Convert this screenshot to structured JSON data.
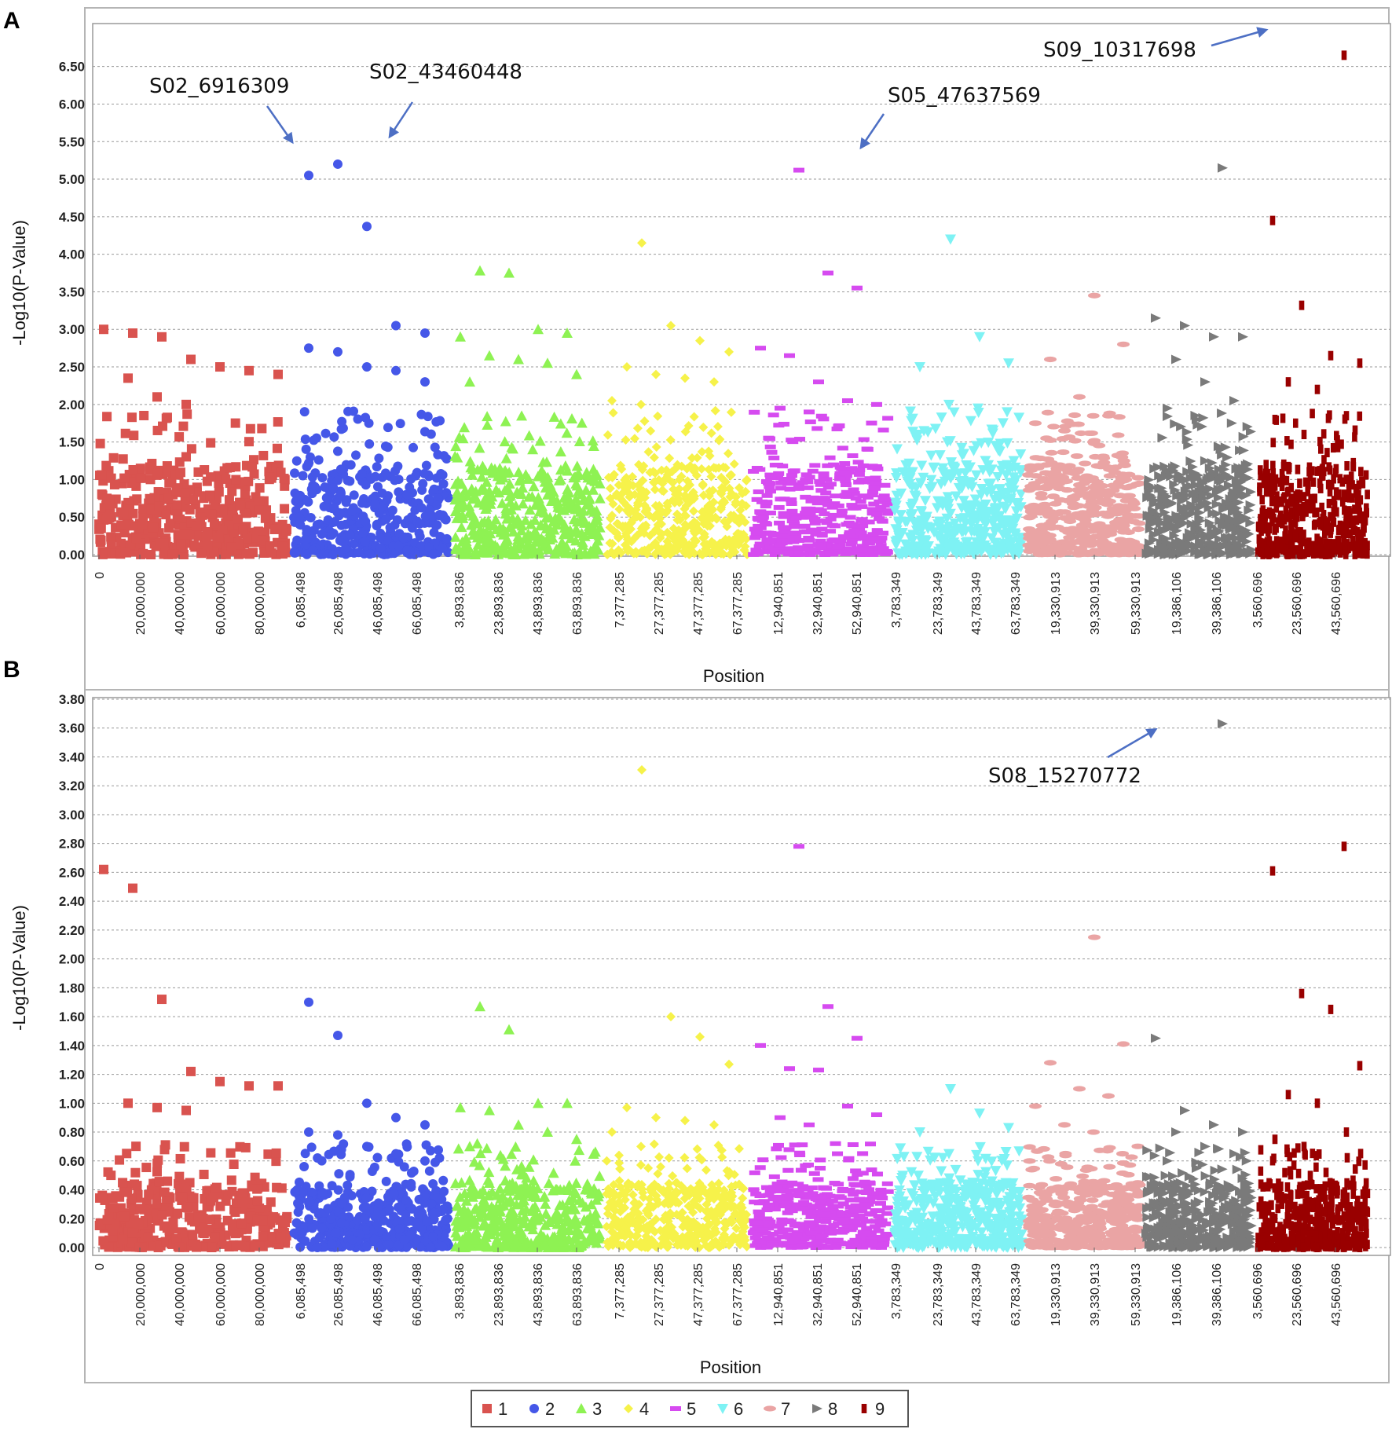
{
  "chart_data": [
    {
      "panel": "A",
      "type": "scatter",
      "subtype": "manhattan",
      "title": "",
      "xlabel": "Position",
      "ylabel": "-Log10(P-Value)",
      "ylim": [
        0,
        6.8
      ],
      "yticks": [
        "0.00",
        "0.50",
        "1.00",
        "1.50",
        "2.00",
        "2.50",
        "3.00",
        "3.50",
        "4.00",
        "4.50",
        "5.00",
        "5.50",
        "6.00",
        "6.50"
      ],
      "xticks": [
        "0",
        "20,000,000",
        "40,000,000",
        "60,000,000",
        "80,000,000",
        "6,085,498",
        "26,085,498",
        "46,085,498",
        "66,085,498",
        "3,893,836",
        "23,893,836",
        "43,893,836",
        "63,893,836",
        "7,377,285",
        "27,377,285",
        "47,377,285",
        "67,377,285",
        "12,940,851",
        "32,940,851",
        "52,940,851",
        "3,783,349",
        "23,783,349",
        "43,783,349",
        "63,783,349",
        "19,330,913",
        "39,330,913",
        "59,330,913",
        "19,386,106",
        "39,386,106",
        "3,560,696",
        "23,560,696",
        "43,560,696"
      ],
      "annotations": [
        {
          "label": "S02_6916309",
          "chromosome": 2,
          "value": 5.05
        },
        {
          "label": "S02_43460448",
          "chromosome": 2,
          "value": 5.2
        },
        {
          "label": "S05_47637569",
          "chromosome": 5,
          "value": 5.12
        },
        {
          "label": "S09_10317698",
          "chromosome": 9,
          "value": 6.65
        }
      ],
      "series": [
        {
          "name": "1",
          "top_values": [
            3.0,
            2.95,
            2.9,
            2.6,
            2.5,
            2.45,
            2.4,
            2.35,
            2.1,
            2.0
          ]
        },
        {
          "name": "2",
          "top_values": [
            5.05,
            5.2,
            4.37,
            3.05,
            2.95,
            2.75,
            2.7,
            2.5,
            2.45,
            2.3
          ]
        },
        {
          "name": "3",
          "top_values": [
            3.78,
            3.75,
            3.0,
            2.95,
            2.9,
            2.65,
            2.6,
            2.55,
            2.4,
            2.3
          ]
        },
        {
          "name": "4",
          "top_values": [
            4.15,
            3.05,
            2.85,
            2.7,
            2.5,
            2.4,
            2.35,
            2.3,
            2.05,
            2.0
          ]
        },
        {
          "name": "5",
          "top_values": [
            5.12,
            3.75,
            3.55,
            2.75,
            2.65,
            2.3,
            2.05,
            2.0,
            1.95,
            1.9
          ]
        },
        {
          "name": "6",
          "top_values": [
            4.2,
            2.9,
            2.55,
            2.5,
            2.0,
            1.95,
            1.9,
            1.6,
            1.5,
            1.45
          ]
        },
        {
          "name": "7",
          "top_values": [
            3.45,
            2.8,
            2.6,
            2.1,
            1.85,
            1.75,
            1.65,
            1.5,
            1.35,
            1.2
          ]
        },
        {
          "name": "8",
          "top_values": [
            5.15,
            3.15,
            3.05,
            2.9,
            2.9,
            2.6,
            2.3,
            2.05,
            1.95,
            1.8
          ]
        },
        {
          "name": "9",
          "top_values": [
            6.65,
            4.45,
            3.32,
            2.65,
            2.55,
            2.3,
            2.2,
            1.85,
            1.8,
            1.6
          ]
        }
      ]
    },
    {
      "panel": "B",
      "type": "scatter",
      "subtype": "manhattan",
      "title": "",
      "xlabel": "Position",
      "ylabel": "-Log10(P-Value)",
      "ylim": [
        0,
        3.8
      ],
      "yticks": [
        "0.00",
        "0.20",
        "0.40",
        "0.60",
        "0.80",
        "1.00",
        "1.20",
        "1.40",
        "1.60",
        "1.80",
        "2.00",
        "2.20",
        "2.40",
        "2.60",
        "2.80",
        "3.00",
        "3.20",
        "3.40",
        "3.60",
        "3.80"
      ],
      "xticks": [
        "0",
        "20,000,000",
        "40,000,000",
        "60,000,000",
        "80,000,000",
        "6,085,498",
        "26,085,498",
        "46,085,498",
        "66,085,498",
        "3,893,836",
        "23,893,836",
        "43,893,836",
        "63,893,836",
        "7,377,285",
        "27,377,285",
        "47,377,285",
        "67,377,285",
        "12,940,851",
        "32,940,851",
        "52,940,851",
        "3,783,349",
        "23,783,349",
        "43,783,349",
        "63,783,349",
        "19,330,913",
        "39,330,913",
        "59,330,913",
        "19,386,106",
        "39,386,106",
        "3,560,696",
        "23,560,696",
        "43,560,696"
      ],
      "annotations": [
        {
          "label": "S08_15270772",
          "chromosome": 8,
          "value": 3.63
        }
      ],
      "series": [
        {
          "name": "1",
          "top_values": [
            2.62,
            2.49,
            1.72,
            1.22,
            1.15,
            1.12,
            1.12,
            1.0,
            0.97,
            0.95
          ]
        },
        {
          "name": "2",
          "top_values": [
            1.7,
            1.47,
            1.0,
            0.9,
            0.85,
            0.8,
            0.78,
            0.7,
            0.65,
            0.6
          ]
        },
        {
          "name": "3",
          "top_values": [
            1.67,
            1.51,
            1.0,
            1.0,
            0.97,
            0.95,
            0.85,
            0.8,
            0.75,
            0.7
          ]
        },
        {
          "name": "4",
          "top_values": [
            3.31,
            1.6,
            1.46,
            1.27,
            0.97,
            0.9,
            0.88,
            0.85,
            0.8,
            0.7
          ]
        },
        {
          "name": "5",
          "top_values": [
            2.78,
            1.67,
            1.45,
            1.4,
            1.24,
            1.23,
            0.98,
            0.92,
            0.9,
            0.85
          ]
        },
        {
          "name": "6",
          "top_values": [
            1.1,
            0.93,
            0.83,
            0.8,
            0.65,
            0.6,
            0.57,
            0.5,
            0.45,
            0.4
          ]
        },
        {
          "name": "7",
          "top_values": [
            2.15,
            1.41,
            1.28,
            1.1,
            1.05,
            0.98,
            0.85,
            0.8,
            0.65,
            0.6
          ]
        },
        {
          "name": "8",
          "top_values": [
            3.63,
            1.45,
            0.95,
            0.85,
            0.8,
            0.8,
            0.7,
            0.65,
            0.6,
            0.55
          ]
        },
        {
          "name": "9",
          "top_values": [
            2.78,
            2.61,
            1.76,
            1.65,
            1.26,
            1.06,
            1.0,
            0.8,
            0.75,
            0.7
          ]
        }
      ]
    }
  ],
  "legend": {
    "entries": [
      {
        "label": "1",
        "color": "#d9534f",
        "shape": "square"
      },
      {
        "label": "2",
        "color": "#4557e8",
        "shape": "circle"
      },
      {
        "label": "3",
        "color": "#8ef253",
        "shape": "triangle-up"
      },
      {
        "label": "4",
        "color": "#f6f24a",
        "shape": "diamond"
      },
      {
        "label": "5",
        "color": "#d64bf0",
        "shape": "dash"
      },
      {
        "label": "6",
        "color": "#7ef2f4",
        "shape": "triangle-down"
      },
      {
        "label": "7",
        "color": "#eaa4a4",
        "shape": "ellipse"
      },
      {
        "label": "8",
        "color": "#7a7a7a",
        "shape": "triangle-right"
      },
      {
        "label": "9",
        "color": "#990000",
        "shape": "bar"
      }
    ]
  }
}
